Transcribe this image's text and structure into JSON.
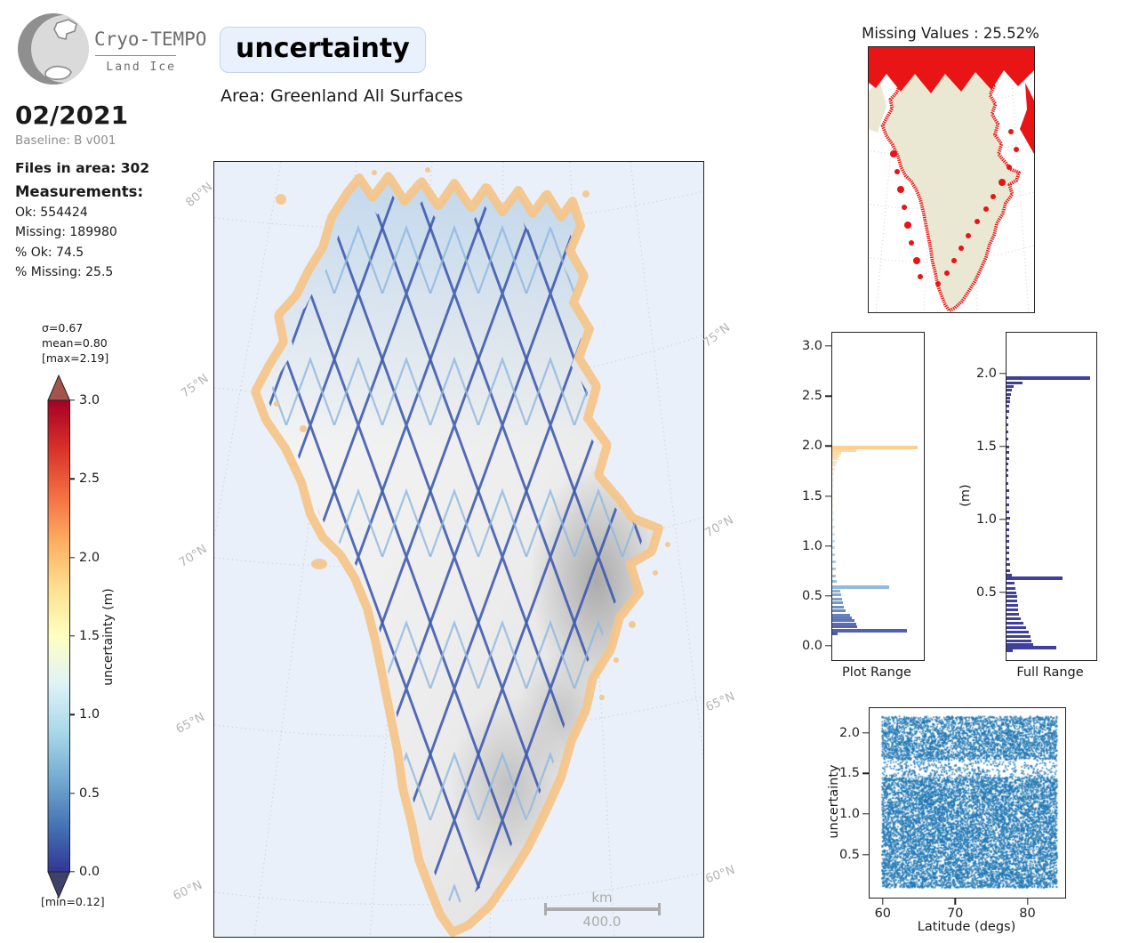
{
  "branding": {
    "title": "Cryo-TEMPO",
    "subtitle": "Land Ice"
  },
  "header": {
    "variable_badge": "uncertainty",
    "area_label": "Area: Greenland All Surfaces",
    "date": "02/2021",
    "baseline": "Baseline: B v001"
  },
  "summary": {
    "files_in_area": "Files in area: 302",
    "measurements_heading": "Measurements:",
    "stats": [
      "Ok: 554424",
      "Missing: 189980",
      "% Ok: 74.5",
      "% Missing: 25.5"
    ]
  },
  "colorbar": {
    "stats": [
      "σ=0.67",
      "mean=0.80",
      "[max=2.19]"
    ],
    "min_label": "[min=0.12]",
    "axis_label": "uncertainty (m)",
    "ticks": [
      "3.0",
      "2.5",
      "2.0",
      "1.5",
      "1.0",
      "0.5",
      "0.0"
    ],
    "cmap_stops_bottom_to_top": [
      "#313695",
      "#4575b4",
      "#74add1",
      "#abd9e9",
      "#e0f3f8",
      "#ffffbf",
      "#fee090",
      "#fdae61",
      "#f46d43",
      "#d73027",
      "#a50026"
    ],
    "over_color": "#a3544e",
    "under_color": "#3e4169"
  },
  "main_map": {
    "lat_labels_left": [
      "80°N",
      "75°N",
      "70°N",
      "65°N",
      "60°N"
    ],
    "lat_labels_right": [
      "75°N",
      "70°N",
      "65°N",
      "60°N"
    ],
    "scalebar": {
      "unit": "km",
      "length": "400.0"
    },
    "ocean_color": "#e9f0f9",
    "track_colors": [
      "#3b57b0",
      "#8fb8e0"
    ],
    "coast_color": "#f5c488"
  },
  "missing_panel": {
    "title": "Missing Values : 25.52%",
    "land_color": "#eae7d2",
    "missing_color": "#e81416"
  },
  "chart_data": [
    {
      "name": "plot_range_hist",
      "type": "bar",
      "orientation": "horizontal",
      "title": "Plot Range",
      "ylim": [
        -0.14,
        3.13
      ],
      "value_range": [
        -0.1424,
        3.1337
      ],
      "yticks": [
        0.0,
        0.5,
        1.0,
        1.5,
        2.0,
        2.5,
        3.0
      ],
      "bars_value_fraction_color": [
        [
          1.99,
          0.93,
          "#fbcf92"
        ],
        [
          1.955,
          0.26,
          "#fbd7a3"
        ],
        [
          1.93,
          0.1,
          "#fcdaa9"
        ],
        [
          1.9,
          0.075,
          "#fcdcae"
        ],
        [
          1.87,
          0.055,
          "#fcdfb4"
        ],
        [
          1.84,
          0.045,
          "#fde2bb"
        ],
        [
          1.81,
          0.035,
          "#fde5c2"
        ],
        [
          1.77,
          0.028,
          "#fee9cc"
        ],
        [
          1.72,
          0.024,
          "#feedd6"
        ],
        [
          1.66,
          0.022,
          "#fff2e0"
        ],
        [
          1.6,
          0.02,
          "#fff6ea"
        ],
        [
          1.54,
          0.02,
          "#fffbef"
        ],
        [
          1.47,
          0.02,
          "#fdfce2"
        ],
        [
          1.4,
          0.02,
          "#f8fbdd"
        ],
        [
          1.33,
          0.022,
          "#eef7e4"
        ],
        [
          1.26,
          0.024,
          "#e3f2ec"
        ],
        [
          1.19,
          0.026,
          "#d9edf2"
        ],
        [
          1.12,
          0.028,
          "#d0e8f1"
        ],
        [
          1.05,
          0.03,
          "#c7e1ee"
        ],
        [
          0.98,
          0.03,
          "#bedaea"
        ],
        [
          0.91,
          0.032,
          "#b6d4e7"
        ],
        [
          0.84,
          0.034,
          "#aecee4"
        ],
        [
          0.77,
          0.038,
          "#a7c9e1"
        ],
        [
          0.7,
          0.042,
          "#a0c4de"
        ],
        [
          0.645,
          0.05,
          "#9abfdc"
        ],
        [
          0.59,
          0.62,
          "#94bad9"
        ],
        [
          0.55,
          0.09,
          "#8cb1d4"
        ],
        [
          0.51,
          0.1,
          "#84a8d0"
        ],
        [
          0.47,
          0.11,
          "#7da0cb"
        ],
        [
          0.43,
          0.12,
          "#7697c7"
        ],
        [
          0.39,
          0.13,
          "#708fc3"
        ],
        [
          0.35,
          0.145,
          "#6b88c0"
        ],
        [
          0.31,
          0.19,
          "#6781bd"
        ],
        [
          0.28,
          0.215,
          "#637aba"
        ],
        [
          0.25,
          0.24,
          "#5f73b7"
        ],
        [
          0.22,
          0.26,
          "#5b6cb3"
        ],
        [
          0.19,
          0.275,
          "#5766b0"
        ],
        [
          0.155,
          0.82,
          "#5360ac"
        ],
        [
          0.125,
          0.06,
          "#4f59a8"
        ]
      ]
    },
    {
      "name": "full_range_hist",
      "type": "bar",
      "orientation": "horizontal",
      "title": "Full Range",
      "ylabel": "(m)",
      "ylim": [
        0.03,
        2.28
      ],
      "value_range": [
        0.0366,
        2.2805
      ],
      "yticks": [
        0.5,
        1.0,
        1.5,
        2.0
      ],
      "color": "#3f3f9e",
      "bars_value_fraction": [
        [
          1.97,
          0.93
        ],
        [
          1.935,
          0.18
        ],
        [
          1.91,
          0.08
        ],
        [
          1.885,
          0.06
        ],
        [
          1.86,
          0.05
        ],
        [
          1.835,
          0.042
        ],
        [
          1.81,
          0.036
        ],
        [
          1.78,
          0.03
        ],
        [
          1.74,
          0.026
        ],
        [
          1.7,
          0.024
        ],
        [
          1.65,
          0.022
        ],
        [
          1.6,
          0.022
        ],
        [
          1.55,
          0.024
        ],
        [
          1.5,
          0.028
        ],
        [
          1.46,
          0.032
        ],
        [
          1.42,
          0.028
        ],
        [
          1.38,
          0.024
        ],
        [
          1.34,
          0.022
        ],
        [
          1.3,
          0.022
        ],
        [
          1.25,
          0.024
        ],
        [
          1.2,
          0.026
        ],
        [
          1.15,
          0.026
        ],
        [
          1.1,
          0.028
        ],
        [
          1.05,
          0.032
        ],
        [
          1.01,
          0.036
        ],
        [
          0.97,
          0.034
        ],
        [
          0.93,
          0.03
        ],
        [
          0.89,
          0.028
        ],
        [
          0.85,
          0.028
        ],
        [
          0.81,
          0.03
        ],
        [
          0.77,
          0.032
        ],
        [
          0.73,
          0.034
        ],
        [
          0.69,
          0.038
        ],
        [
          0.65,
          0.044
        ],
        [
          0.62,
          0.055
        ],
        [
          0.6,
          0.62
        ],
        [
          0.565,
          0.085
        ],
        [
          0.53,
          0.095
        ],
        [
          0.5,
          0.105
        ],
        [
          0.47,
          0.115
        ],
        [
          0.44,
          0.12
        ],
        [
          0.41,
          0.125
        ],
        [
          0.38,
          0.13
        ],
        [
          0.35,
          0.14
        ],
        [
          0.32,
          0.16
        ],
        [
          0.29,
          0.19
        ],
        [
          0.26,
          0.22
        ],
        [
          0.23,
          0.25
        ],
        [
          0.2,
          0.27
        ],
        [
          0.17,
          0.28
        ],
        [
          0.145,
          0.3
        ],
        [
          0.12,
          0.55
        ],
        [
          0.1,
          0.07
        ]
      ]
    },
    {
      "name": "latitude_scatter",
      "type": "scatter",
      "xlabel": "Latitude (degs)",
      "ylabel": "uncertainty",
      "xticks": [
        60,
        70,
        80
      ],
      "yticks": [
        0.5,
        1.0,
        1.5,
        2.0
      ],
      "xlim": [
        58.18,
        84.85
      ],
      "ylim": [
        0.0036,
        2.302
      ],
      "x_data_range": [
        59.8,
        84.0
      ],
      "y_data_range": [
        0.1,
        2.21
      ],
      "sparse_band": [
        1.46,
        1.68
      ],
      "sparse_band_keep": 0.3,
      "top_band_above": 2.03,
      "top_band_keep": 0.82,
      "n_points": 15000,
      "color": "#1f77b4"
    }
  ]
}
